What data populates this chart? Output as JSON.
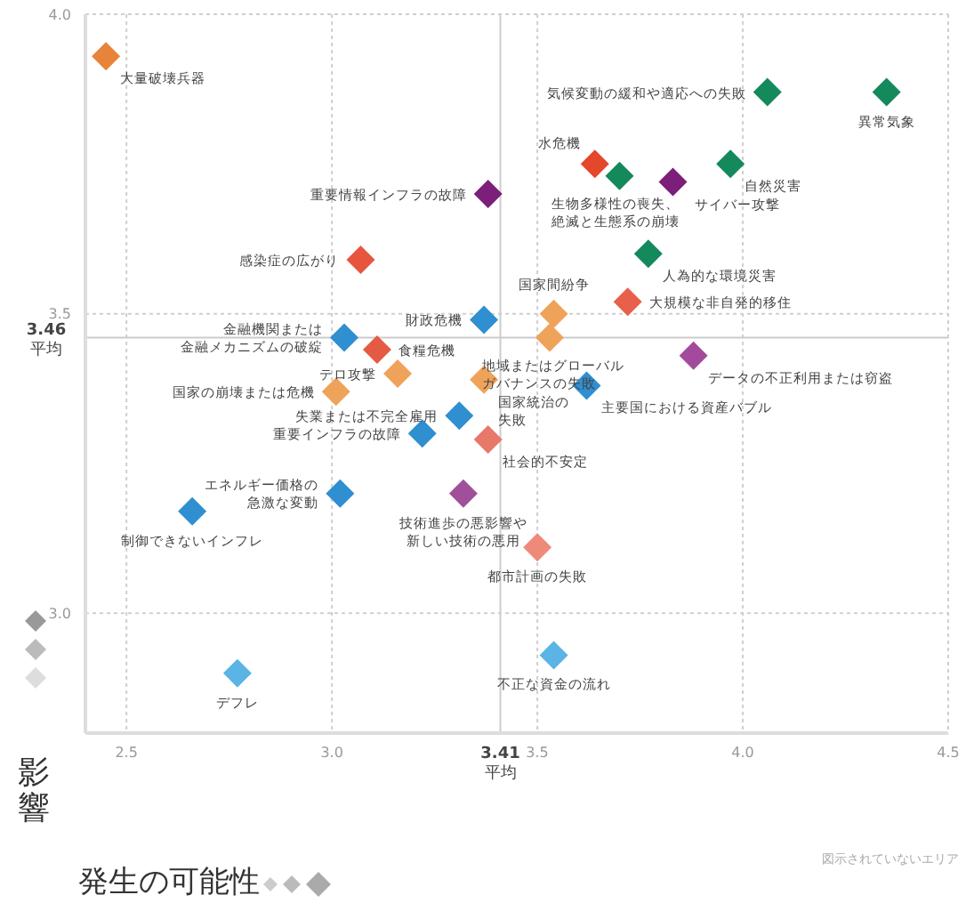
{
  "chart_data": {
    "type": "scatter",
    "xlabel": "発生の可能性",
    "ylabel": "影響",
    "marker": "diamond",
    "grid": true,
    "xlim": [
      2.4,
      4.5
    ],
    "xticks": [
      2.5,
      {
        "value": 3,
        "label": "3.0"
      },
      3.5,
      {
        "value": 4,
        "label": "4.0"
      },
      4.5
    ],
    "ylim": [
      2.8,
      4.0
    ],
    "yticks": [
      {
        "value": 3,
        "label": "3.0"
      },
      3.5,
      {
        "value": 4,
        "label": "4.0"
      }
    ],
    "x": [
      2.45,
      4.35,
      4.06,
      3.97,
      3.64,
      3.7,
      3.83,
      3.38,
      3.07,
      3.77,
      3.72,
      3.54,
      3.37,
      3.53,
      3.03,
      3.11,
      3.16,
      3.01,
      3.37,
      3.88,
      3.62,
      3.31,
      3.22,
      3.38,
      3.02,
      3.32,
      2.66,
      3.5,
      3.54,
      2.77
    ],
    "values": [
      3.93,
      3.87,
      3.87,
      3.75,
      3.75,
      3.73,
      3.72,
      3.7,
      3.59,
      3.6,
      3.52,
      3.5,
      3.49,
      3.46,
      3.46,
      3.44,
      3.4,
      3.37,
      3.39,
      3.43,
      3.38,
      3.33,
      3.3,
      3.29,
      3.2,
      3.2,
      3.17,
      3.11,
      2.93,
      2.9
    ],
    "colors": [
      "#e8833a",
      "#14895c",
      "#14895c",
      "#14895c",
      "#e5472c",
      "#14895c",
      "#7b1f7a",
      "#7b1f7a",
      "#e8553e",
      "#14895c",
      "#e8604a",
      "#efa35a",
      "#2f8fd0",
      "#efa35a",
      "#2f8fd0",
      "#e55a45",
      "#efa35a",
      "#efa35a",
      "#efa35a",
      "#a44a9c",
      "#2f8fd0",
      "#2f8fd0",
      "#2f8fd0",
      "#e8786a",
      "#2f8fd0",
      "#a0509a",
      "#2f8fd0",
      "#ef8a7a",
      "#5ab4e5",
      "#5ab4e5"
    ],
    "ref_lines": [
      {
        "axis": "x",
        "value": 3.41,
        "label": "3.41 平均",
        "color": "#cccccc"
      },
      {
        "axis": "y",
        "value": 3.46,
        "label": "3.46 平均",
        "color": "#cccccc"
      }
    ],
    "annotations": [
      {
        "text": "大量破壊兵器",
        "x": 2.45,
        "y": 3.93
      },
      {
        "text": "異常気象",
        "x": 4.35,
        "y": 3.87
      },
      {
        "text": "気候変動の緩和や適応への失敗",
        "x": 4.06,
        "y": 3.87
      },
      {
        "text": "自然災害",
        "x": 3.97,
        "y": 3.75
      },
      {
        "text": "水危機",
        "x": 3.64,
        "y": 3.75
      },
      {
        "text": "生物多様性の喪失、絶滅と生態系の崩壊",
        "x": 3.7,
        "y": 3.73
      },
      {
        "text": "サイバー攻撃",
        "x": 3.83,
        "y": 3.72
      },
      {
        "text": "重要情報インフラの故障",
        "x": 3.38,
        "y": 3.7
      },
      {
        "text": "感染症の広がり",
        "x": 3.07,
        "y": 3.59
      },
      {
        "text": "人為的な環境災害",
        "x": 3.77,
        "y": 3.6
      },
      {
        "text": "大規模な非自発的移住",
        "x": 3.72,
        "y": 3.52
      },
      {
        "text": "国家間紛争",
        "x": 3.54,
        "y": 3.5
      },
      {
        "text": "財政危機",
        "x": 3.37,
        "y": 3.49
      },
      {
        "text": "地域またはグローバルガバナンスの失敗",
        "x": 3.53,
        "y": 3.46
      },
      {
        "text": "金融機関または金融メカニズムの破綻",
        "x": 3.03,
        "y": 3.46
      },
      {
        "text": "食糧危機",
        "x": 3.11,
        "y": 3.44
      },
      {
        "text": "テロ攻撃",
        "x": 3.16,
        "y": 3.4
      },
      {
        "text": "国家の崩壊または危機",
        "x": 3.01,
        "y": 3.37
      },
      {
        "text": "国家統治の失敗",
        "x": 3.37,
        "y": 3.39
      },
      {
        "text": "データの不正利用または窃盗",
        "x": 3.88,
        "y": 3.43
      },
      {
        "text": "主要国における資産バブル",
        "x": 3.62,
        "y": 3.38
      },
      {
        "text": "失業または不完全雇用",
        "x": 3.31,
        "y": 3.33
      },
      {
        "text": "重要インフラの故障",
        "x": 3.22,
        "y": 3.3
      },
      {
        "text": "社会的不安定",
        "x": 3.38,
        "y": 3.29
      },
      {
        "text": "エネルギー価格の急激な変動",
        "x": 3.02,
        "y": 3.2
      },
      {
        "text": "技術進歩の悪影響や新しい技術の悪用",
        "x": 3.32,
        "y": 3.2
      },
      {
        "text": "制御できないインフレ",
        "x": 2.66,
        "y": 3.17
      },
      {
        "text": "都市計画の失敗",
        "x": 3.5,
        "y": 3.11
      },
      {
        "text": "不正な資金の流れ",
        "x": 3.54,
        "y": 2.93
      },
      {
        "text": "デフレ",
        "x": 2.77,
        "y": 2.9
      },
      "図示されていないエリア"
    ]
  }
}
